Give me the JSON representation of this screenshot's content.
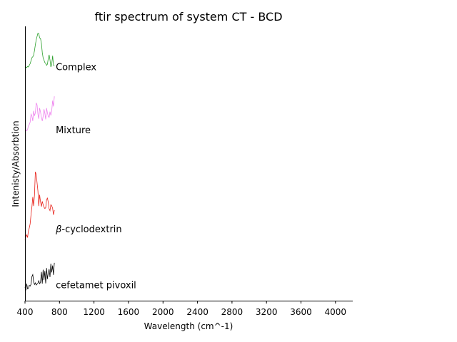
{
  "chart_data": {
    "type": "line",
    "title": "ftir spectrum of system CT - BCD",
    "xlabel": "Wavelength (cm^-1)",
    "ylabel": "Intenisty/Absorbtion",
    "xlim": [
      400,
      4200
    ],
    "ylim": [
      0,
      100
    ],
    "xticks": [
      400,
      800,
      1200,
      1600,
      2000,
      2400,
      2800,
      3200,
      3600,
      4000
    ],
    "tick_labels": [
      "400",
      "800",
      "1200",
      "1600",
      "2000",
      "2400",
      "2800",
      "3200",
      "3600",
      "4000"
    ],
    "grid": false,
    "series": [
      {
        "name": "cefetamet pivoxil",
        "color": "#000000",
        "x": [
          400,
          410,
          420,
          430,
          440,
          450,
          460,
          470,
          480,
          490,
          500,
          510,
          520,
          530,
          540,
          550,
          560,
          570,
          580,
          590,
          600,
          610,
          620,
          630,
          640,
          650,
          660,
          670,
          680,
          690,
          700,
          710,
          720,
          730,
          740
        ],
        "y": [
          5.0,
          3.8,
          6.2,
          4.3,
          4.5,
          5.6,
          5.3,
          6.0,
          8.8,
          9.5,
          6.9,
          5.9,
          6.5,
          5.7,
          6.1,
          6.4,
          7.3,
          6.2,
          6.6,
          10.5,
          6.2,
          11.3,
          7.5,
          10.8,
          6.3,
          11.9,
          7.9,
          10.1,
          11.5,
          8.6,
          13.5,
          10.3,
          12.8,
          9.4,
          13.8
        ]
      },
      {
        "name": "$\\beta$-cyclodextrin",
        "color": "#e8211a",
        "x": [
          400,
          410,
          420,
          430,
          440,
          450,
          460,
          470,
          480,
          490,
          500,
          510,
          520,
          530,
          540,
          550,
          560,
          570,
          580,
          590,
          600,
          610,
          620,
          630,
          640,
          650,
          660,
          670,
          680,
          690,
          700,
          710,
          720,
          730,
          740
        ],
        "y": [
          22.0,
          23.4,
          24.0,
          23.0,
          25.5,
          26.5,
          28.0,
          31.5,
          34.2,
          37.8,
          34.5,
          38.5,
          47.0,
          46.0,
          43.0,
          40.0,
          34.5,
          38.6,
          36.1,
          34.3,
          36.2,
          35.0,
          34.1,
          33.6,
          33.9,
          36.8,
          37.4,
          35.9,
          33.5,
          32.8,
          35.0,
          34.6,
          33.7,
          31.3,
          33.0
        ]
      },
      {
        "name": "Mixture",
        "color": "#ee82ee",
        "x": [
          400,
          410,
          420,
          430,
          440,
          450,
          460,
          470,
          480,
          490,
          500,
          510,
          520,
          530,
          540,
          550,
          560,
          570,
          580,
          590,
          600,
          610,
          620,
          630,
          640,
          650,
          660,
          670,
          680,
          690,
          700,
          710,
          720,
          730,
          740
        ],
        "y": [
          63.0,
          62.2,
          61.9,
          62.4,
          63.8,
          64.2,
          65.1,
          68.0,
          67.3,
          65.5,
          69.2,
          67.4,
          68.5,
          72.1,
          71.4,
          68.0,
          66.3,
          70.2,
          68.8,
          66.9,
          65.5,
          67.2,
          69.8,
          68.3,
          66.1,
          70.2,
          68.5,
          67.2,
          66.8,
          68.9,
          67.5,
          69.2,
          72.9,
          70.8,
          74.5
        ]
      },
      {
        "name": "Complex",
        "color": "#2ca02c",
        "x": [
          400,
          410,
          420,
          430,
          440,
          450,
          460,
          470,
          480,
          490,
          500,
          510,
          520,
          530,
          540,
          550,
          560,
          570,
          580,
          590,
          600,
          610,
          620,
          630,
          640,
          650,
          660,
          670,
          680,
          690,
          700,
          710,
          720,
          730,
          740
        ],
        "y": [
          84.8,
          85.2,
          84.9,
          85.4,
          85.2,
          85.8,
          86.4,
          87.5,
          88.6,
          88.9,
          89.5,
          91.2,
          93.3,
          95.1,
          96.3,
          97.5,
          97.4,
          95.8,
          95.6,
          93.8,
          90.5,
          88.5,
          87.7,
          86.8,
          86.5,
          85.8,
          86.2,
          88.3,
          89.6,
          87.8,
          85.2,
          86.1,
          89.3,
          85.9,
          85.5
        ]
      }
    ],
    "annotations": [
      {
        "text": "Complex",
        "x": 740,
        "y": 84.0
      },
      {
        "text": "Mixture",
        "x": 740,
        "y": 61.0
      },
      {
        "text": "-cyclodextrin",
        "prefix": "β",
        "x": 740,
        "y": 25.0
      },
      {
        "text": "cefetamet pivoxil",
        "x": 740,
        "y": 4.5
      }
    ]
  }
}
